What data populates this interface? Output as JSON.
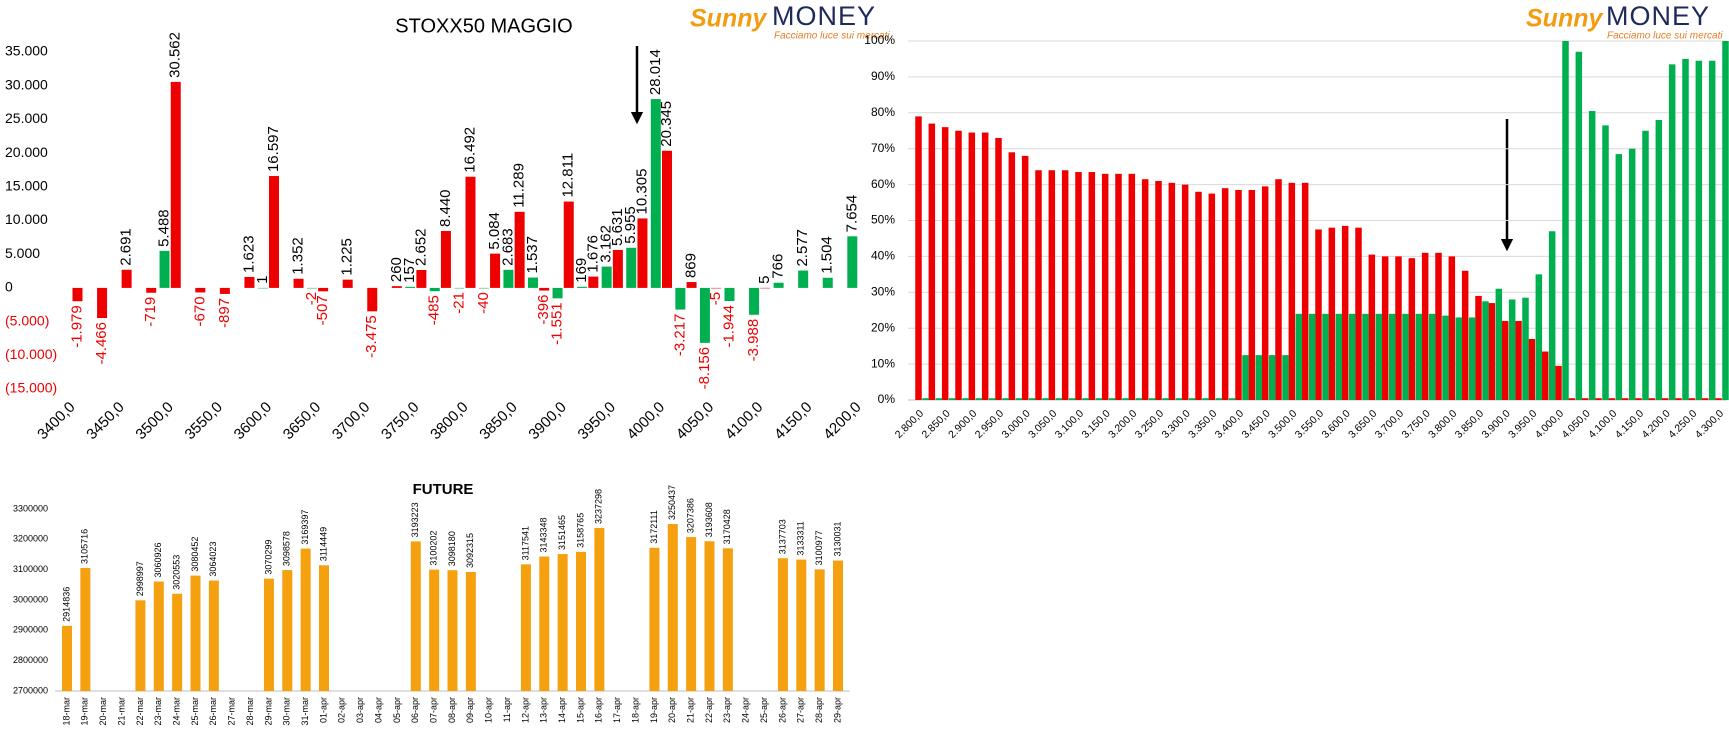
{
  "chart_data": [
    {
      "type": "bar",
      "title": "STOXX50 MAGGIO",
      "logo": {
        "brand1": "Sunny",
        "brand2": "MONEY",
        "tagline": "Facciamo luce sui mercati"
      },
      "categories": [
        "3400,0",
        null,
        "3450,0",
        null,
        "3500,0",
        null,
        "3550,0",
        null,
        "3600,0",
        null,
        "3650,0",
        null,
        "3700,0",
        null,
        "3750,0",
        null,
        "3800,0",
        null,
        "3850,0",
        null,
        "3900,0",
        null,
        "3950,0",
        null,
        "4000,0",
        null,
        "4050,0",
        null,
        "4100,0",
        null,
        "4150,0",
        null,
        "4200,0"
      ],
      "series": [
        {
          "color": "#00b050",
          "values": [
            null,
            null,
            null,
            null,
            5488,
            null,
            null,
            null,
            1,
            null,
            -2,
            null,
            null,
            null,
            157,
            -485,
            -21,
            -40,
            2683,
            1537,
            -1551,
            169,
            3162,
            5955,
            28014,
            -3217,
            -8156,
            -1944,
            -3988,
            766,
            2577,
            1504,
            7654
          ],
          "value_labels": [
            null,
            null,
            null,
            null,
            "5.488",
            null,
            null,
            null,
            "1",
            null,
            "-2",
            null,
            null,
            null,
            "157",
            "-485",
            "-21",
            "-40",
            "2.683",
            "1.537",
            "-1.551",
            "169",
            "3.162",
            "5.955",
            "28.014",
            "-3.217",
            "-8.156",
            "-1.944",
            "-3.988",
            "766",
            "2.577",
            "1.504",
            "7.654"
          ]
        },
        {
          "color": "#ee0000",
          "values": [
            -1979,
            -4466,
            2691,
            -719,
            30562,
            -670,
            -897,
            1623,
            16597,
            1352,
            -507,
            1225,
            -3475,
            260,
            2652,
            8440,
            16492,
            5084,
            11289,
            -396,
            12811,
            1676,
            5631,
            10305,
            20345,
            869,
            -5,
            null,
            5,
            null,
            null,
            null,
            null
          ],
          "value_labels": [
            "-1.979",
            "-4.466",
            "2.691",
            "-719",
            "30.562",
            "-670",
            "-897",
            "1.623",
            "16.597",
            "1.352",
            "-507",
            "1.225",
            "-3.475",
            "260",
            "2.652",
            "8.440",
            "16.492",
            "5.084",
            "11.289",
            "-396",
            "12.811",
            "1.676",
            "5.631",
            "10.305",
            "20.345",
            "869",
            "-5",
            null,
            "5",
            null,
            null,
            null,
            null
          ]
        }
      ],
      "ylim": [
        -15000,
        35000
      ],
      "yticks": [
        {
          "value": 35000,
          "label": "35.000"
        },
        {
          "value": 30000,
          "label": "30.000"
        },
        {
          "value": 25000,
          "label": "25.000"
        },
        {
          "value": 20000,
          "label": "20.000"
        },
        {
          "value": 15000,
          "label": "15.000"
        },
        {
          "value": 10000,
          "label": "10.000"
        },
        {
          "value": 5000,
          "label": "5.000"
        },
        0,
        {
          "value": -5000,
          "label": "(5.000)"
        },
        {
          "value": -10000,
          "label": "(10.000)"
        },
        {
          "value": -15000,
          "label": "(15.000)"
        }
      ],
      "grid": false
    },
    {
      "type": "bar",
      "logo": {
        "brand1": "Sunny",
        "brand2": "MONEY",
        "tagline": "Facciamo luce sui mercati"
      },
      "categories": [
        "2.800,0",
        null,
        "2.850,0",
        null,
        "2.900,0",
        null,
        "2.950,0",
        null,
        "3.000,0",
        null,
        "3.050,0",
        null,
        "3.100,0",
        null,
        "3.150,0",
        null,
        "3.200,0",
        null,
        "3.250,0",
        null,
        "3.300,0",
        null,
        "3.350,0",
        null,
        "3.400,0",
        null,
        "3.450,0",
        null,
        "3.500,0",
        null,
        "3.550,0",
        null,
        "3.600,0",
        null,
        "3.650,0",
        null,
        "3.700,0",
        null,
        "3.750,0",
        null,
        "3.800,0",
        null,
        "3.850,0",
        null,
        "3.900,0",
        null,
        "3.950,0",
        null,
        "4.000,0",
        null,
        "4.050,0",
        null,
        "4.100,0",
        null,
        "4.150,0",
        null,
        "4.200,0",
        null,
        "4.250,0",
        null,
        "4.300,0"
      ],
      "series": [
        {
          "color": "#ee0000",
          "values": [
            79,
            77,
            76,
            75,
            74.5,
            74.5,
            73,
            69,
            68,
            64,
            64,
            64,
            63.5,
            63.5,
            63,
            63,
            63,
            61.5,
            61,
            60.5,
            60,
            58,
            57.5,
            59,
            58.5,
            58.5,
            59.5,
            61.5,
            60.5,
            60.5,
            47.5,
            48,
            48.5,
            48,
            40.5,
            40,
            40,
            39.5,
            41,
            41,
            40,
            36,
            29,
            27,
            22,
            22,
            17,
            13.5,
            9.5,
            0.5,
            0.5,
            0.5,
            0.5,
            0.5,
            0.5,
            0.5,
            0.5,
            0.5,
            0.5,
            0.5,
            0.5
          ]
        },
        {
          "color": "#00b050",
          "values": [
            0.5,
            0.5,
            0.5,
            0.5,
            0.5,
            0.5,
            0.5,
            0.5,
            0.5,
            0.5,
            0.5,
            0.5,
            0.5,
            0.5,
            0.5,
            0.5,
            0.5,
            0.5,
            0.5,
            0.5,
            0.5,
            0.5,
            0.5,
            0.5,
            12.5,
            12.5,
            12.5,
            12.5,
            24,
            24,
            24,
            24,
            24,
            24,
            24,
            24,
            24,
            24,
            24,
            23.5,
            23,
            23,
            27.5,
            31,
            28,
            28.5,
            35,
            47,
            100,
            97,
            80.5,
            76.5,
            68.5,
            70,
            75,
            78,
            93.5,
            95,
            94.5,
            94.5,
            100
          ]
        }
      ],
      "ylim": [
        0,
        100
      ],
      "yticks": [
        {
          "value": 0,
          "label": "0%"
        },
        {
          "value": 10,
          "label": "10%"
        },
        {
          "value": 20,
          "label": "20%"
        },
        {
          "value": 30,
          "label": "30%"
        },
        {
          "value": 40,
          "label": "40%"
        },
        {
          "value": 50,
          "label": "50%"
        },
        {
          "value": 60,
          "label": "60%"
        },
        {
          "value": 70,
          "label": "70%"
        },
        {
          "value": 80,
          "label": "80%"
        },
        {
          "value": 90,
          "label": "90%"
        },
        {
          "value": 100,
          "label": "100%"
        }
      ],
      "grid": true
    },
    {
      "type": "bar",
      "title": "FUTURE",
      "categories": [
        "18-mar",
        "19-mar",
        "20-mar",
        "21-mar",
        "22-mar",
        "23-mar",
        "24-mar",
        "25-mar",
        "26-mar",
        "27-mar",
        "28-mar",
        "29-mar",
        "30-mar",
        "31-mar",
        "01-apr",
        "02-apr",
        "03-apr",
        "04-apr",
        "05-apr",
        "06-apr",
        "07-apr",
        "08-apr",
        "09-apr",
        "10-apr",
        "11-apr",
        "12-apr",
        "13-apr",
        "14-apr",
        "15-apr",
        "16-apr",
        "17-apr",
        "18-apr",
        "19-apr",
        "20-apr",
        "21-apr",
        "22-apr",
        "23-apr",
        "24-apr",
        "25-apr",
        "26-apr",
        "27-apr",
        "28-apr",
        "29-apr"
      ],
      "series": [
        {
          "color": "#f5a00f",
          "values": [
            2914836,
            3105716,
            null,
            null,
            2998997,
            3060926,
            3020553,
            3080452,
            3064023,
            null,
            null,
            3070299,
            3098578,
            3169397,
            3114449,
            null,
            null,
            null,
            null,
            3193223,
            3100202,
            3098180,
            3092315,
            null,
            null,
            3117541,
            3143348,
            3151465,
            3158765,
            3237298,
            null,
            null,
            3172111,
            3250437,
            3207386,
            3193608,
            3170428,
            null,
            null,
            3137703,
            3133311,
            3100977,
            3130031
          ]
        }
      ],
      "ylim": [
        2700000,
        3300000
      ],
      "yticks": [
        2700000,
        2800000,
        2900000,
        3000000,
        3100000,
        3200000,
        3300000
      ],
      "grid": false
    }
  ]
}
